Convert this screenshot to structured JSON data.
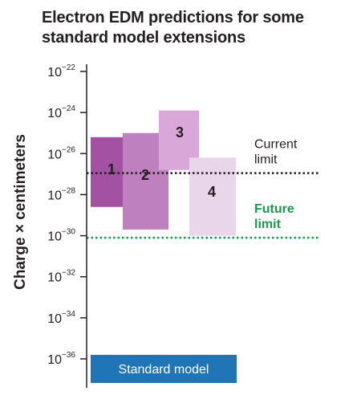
{
  "title_lines": [
    "Electron EDM predictions for some",
    "standard model extensions"
  ],
  "chart_data": {
    "type": "range-bar",
    "title": "Electron EDM predictions for some standard model extensions",
    "ylabel": "Charge × centimeters",
    "y_scale": "log",
    "y_ticks": [
      {
        "base": "10",
        "exp": "−22",
        "value": 1e-22
      },
      {
        "base": "10",
        "exp": "−24",
        "value": 1e-24
      },
      {
        "base": "10",
        "exp": "−26",
        "value": 1e-26
      },
      {
        "base": "10",
        "exp": "−28",
        "value": 1e-28
      },
      {
        "base": "10",
        "exp": "−30",
        "value": 1e-30
      },
      {
        "base": "10",
        "exp": "−32",
        "value": 1e-32
      },
      {
        "base": "10",
        "exp": "−34",
        "value": 1e-34
      },
      {
        "base": "10",
        "exp": "−36",
        "value": 1e-36
      }
    ],
    "ylim_exp": [
      -36,
      -22
    ],
    "ranges": [
      {
        "label": "1",
        "low_exp": -28.6,
        "high_exp": -25.2,
        "color": "#a352a3"
      },
      {
        "label": "2",
        "low_exp": -29.7,
        "high_exp": -25.0,
        "color": "#bf80bf"
      },
      {
        "label": "3",
        "low_exp": -26.8,
        "high_exp": -23.9,
        "color": "#d9a8d9"
      },
      {
        "label": "4",
        "low_exp": -30.0,
        "high_exp": -26.2,
        "color": "#ead6ea"
      }
    ],
    "limits": [
      {
        "name": "current-limit",
        "label_lines": [
          "Current",
          "limit"
        ],
        "exp": -26.95,
        "color": "#231f20"
      },
      {
        "name": "future-limit",
        "label_lines": [
          "Future",
          "limit"
        ],
        "exp": -30.1,
        "color": "#1a9850"
      }
    ],
    "baseline_box": {
      "label": "Standard model",
      "color": "#1f75b5"
    }
  }
}
